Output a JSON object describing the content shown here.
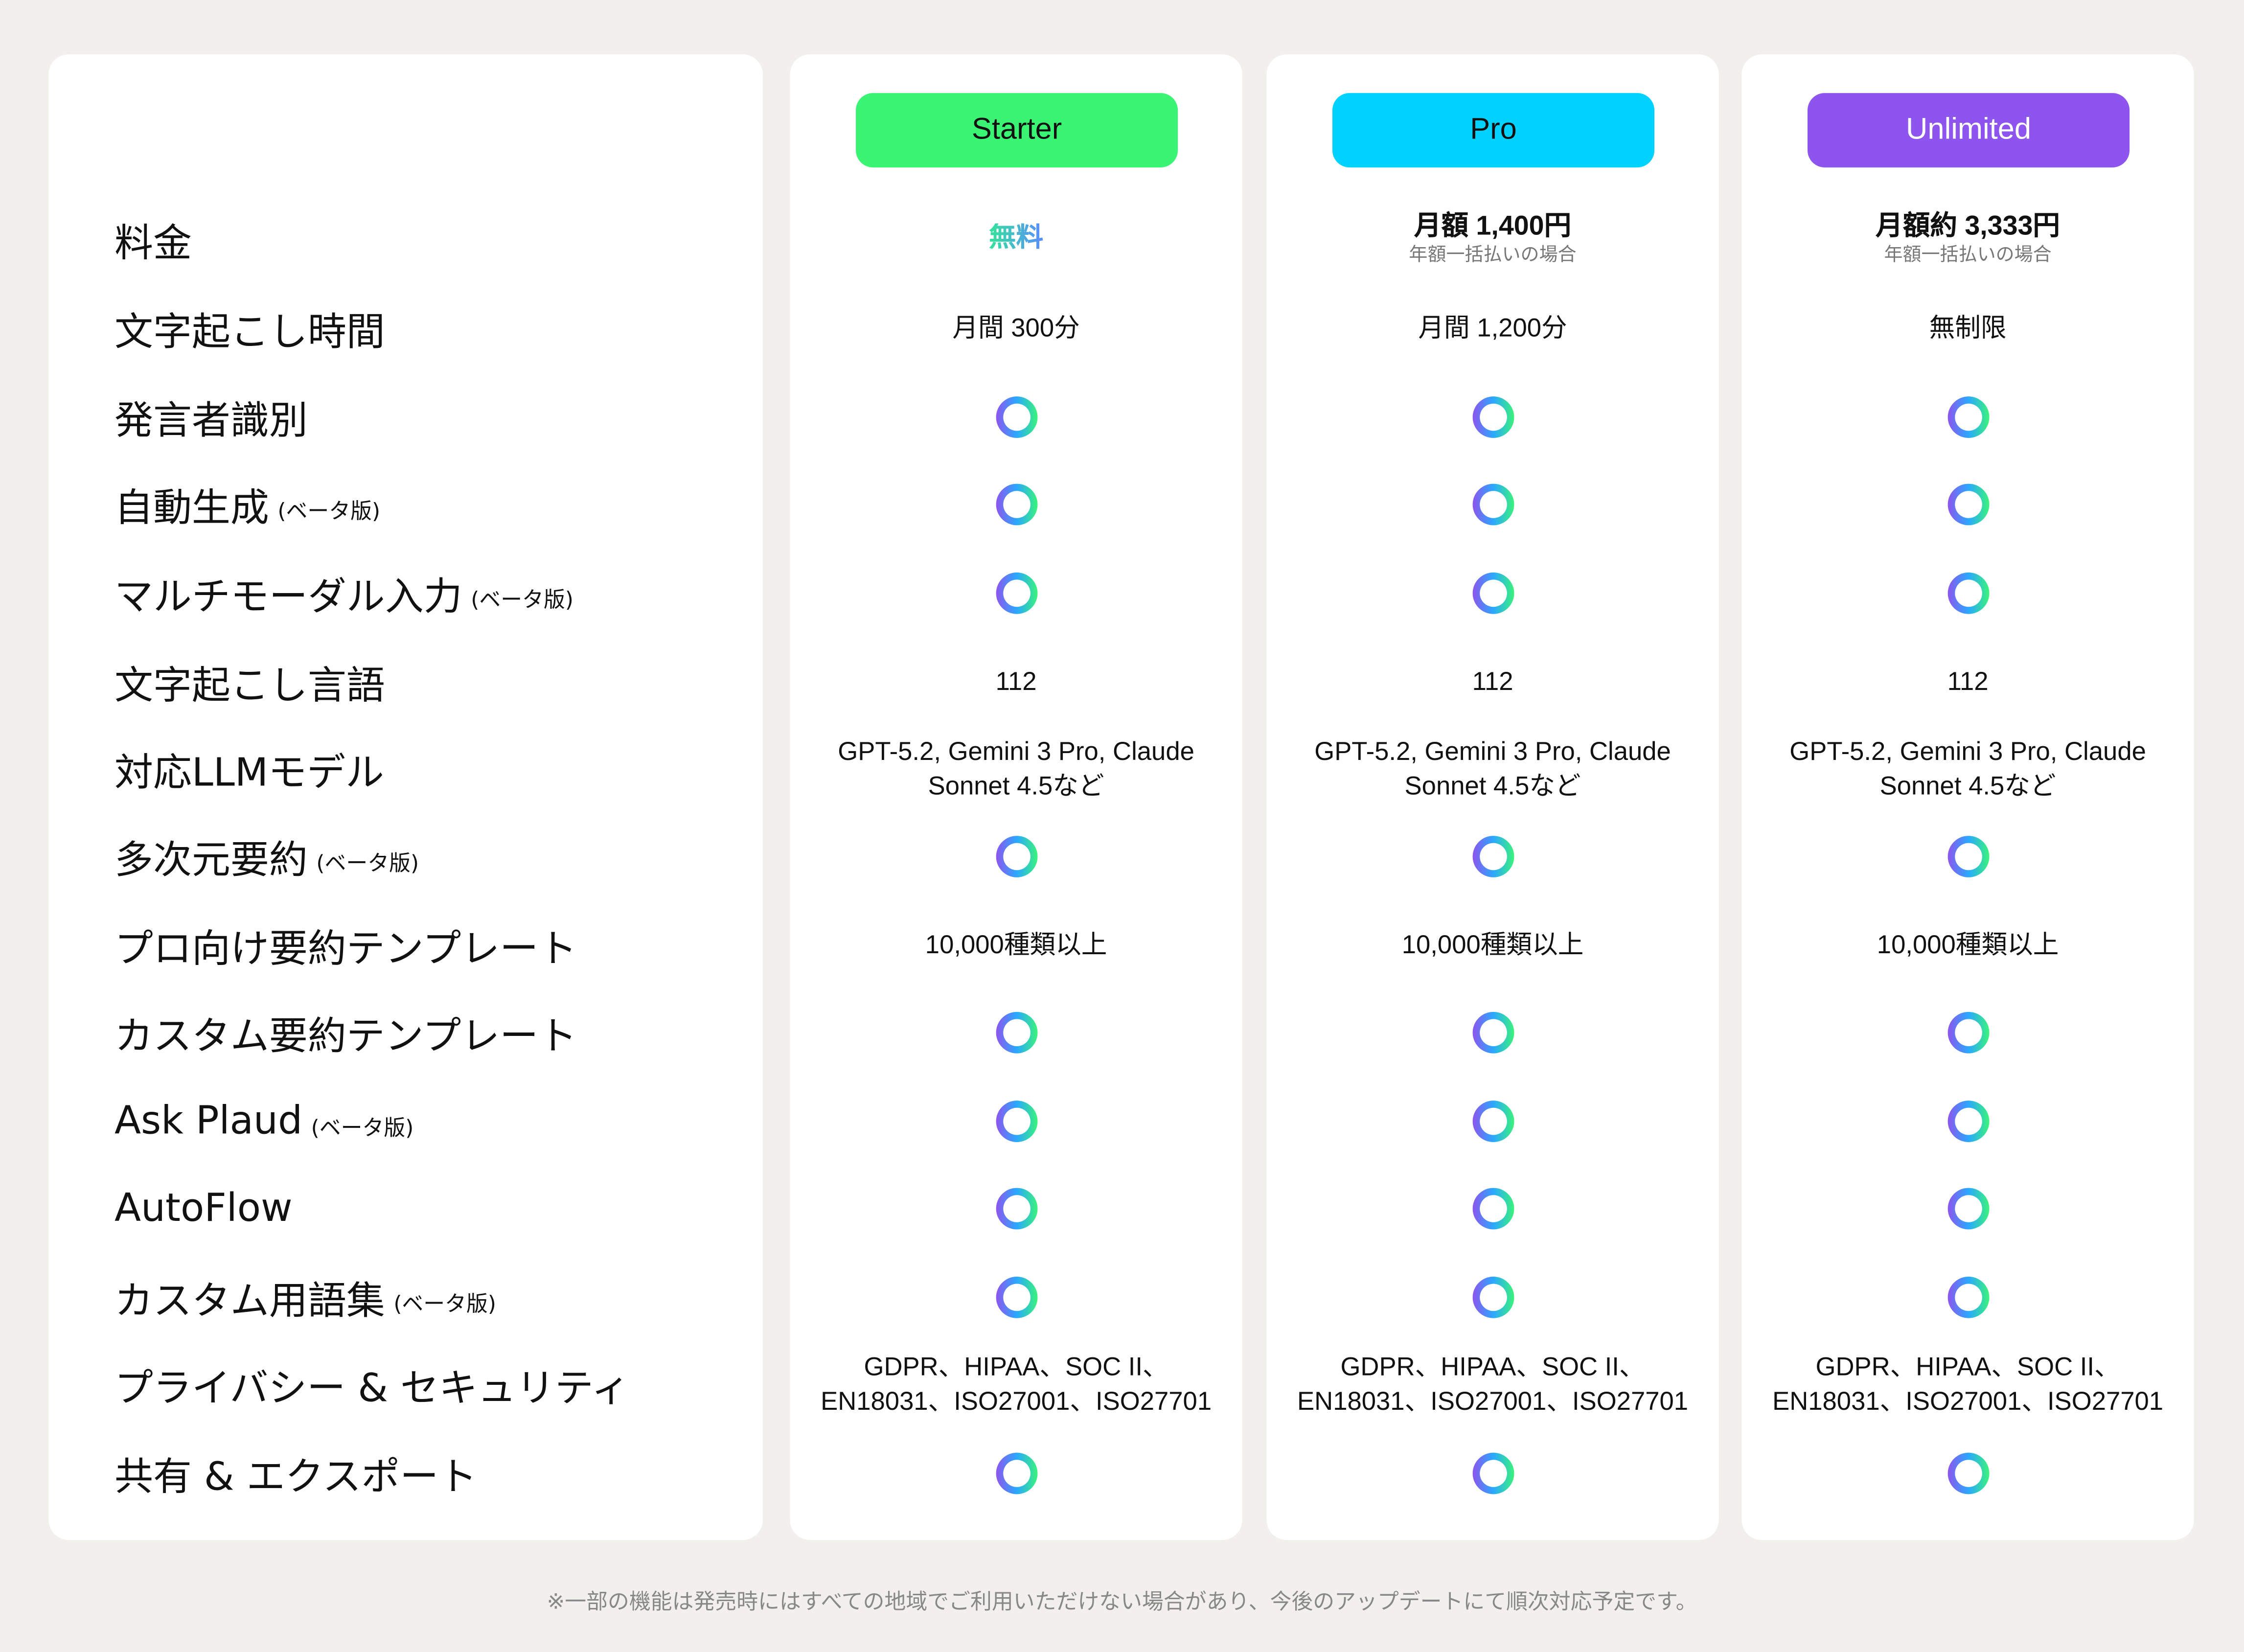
{
  "plans": [
    {
      "name": "Starter",
      "color": "#3af574"
    },
    {
      "name": "Pro",
      "color": "#00d2ff"
    },
    {
      "name": "Unlimited",
      "color": "#8e55ee",
      "text_color": "#ffffff"
    }
  ],
  "beta_label": "(ベータ版)",
  "check_icon_gradient": [
    "#8e55ee",
    "#2aa8ff",
    "#3af47a"
  ],
  "rows": [
    {
      "label": "料金",
      "cells": [
        {
          "type": "free",
          "text": "無料"
        },
        {
          "type": "price",
          "text": "月額 1,400円",
          "note": "年額一括払いの場合"
        },
        {
          "type": "price",
          "text": "月額約 3,333円",
          "note": "年額一括払いの場合"
        }
      ]
    },
    {
      "label": "文字起こし時間",
      "cells": [
        {
          "type": "text",
          "text": "月間 300分"
        },
        {
          "type": "text",
          "text": "月間 1,200分"
        },
        {
          "type": "text",
          "text": "無制限"
        }
      ]
    },
    {
      "label": "発言者識別",
      "cells": [
        {
          "type": "check"
        },
        {
          "type": "check"
        },
        {
          "type": "check"
        }
      ]
    },
    {
      "label": "自動生成",
      "beta": true,
      "cells": [
        {
          "type": "check"
        },
        {
          "type": "check"
        },
        {
          "type": "check"
        }
      ]
    },
    {
      "label": "マルチモーダル入力",
      "beta": true,
      "cells": [
        {
          "type": "check"
        },
        {
          "type": "check"
        },
        {
          "type": "check"
        }
      ]
    },
    {
      "label": "文字起こし言語",
      "cells": [
        {
          "type": "text",
          "text": "112"
        },
        {
          "type": "text",
          "text": "112"
        },
        {
          "type": "text",
          "text": "112"
        }
      ]
    },
    {
      "label": "対応LLMモデル",
      "cells": [
        {
          "type": "text",
          "text": "GPT-5.2, Gemini 3 Pro, Claude Sonnet 4.5など"
        },
        {
          "type": "text",
          "text": "GPT-5.2, Gemini 3 Pro, Claude Sonnet 4.5など"
        },
        {
          "type": "text",
          "text": "GPT-5.2, Gemini 3 Pro, Claude Sonnet 4.5など"
        }
      ]
    },
    {
      "label": "多次元要約",
      "beta": true,
      "cells": [
        {
          "type": "check"
        },
        {
          "type": "check"
        },
        {
          "type": "check"
        }
      ]
    },
    {
      "label": "プロ向け要約テンプレート",
      "cells": [
        {
          "type": "text",
          "text": "10,000種類以上"
        },
        {
          "type": "text",
          "text": "10,000種類以上"
        },
        {
          "type": "text",
          "text": "10,000種類以上"
        }
      ]
    },
    {
      "label": "カスタム要約テンプレート",
      "cells": [
        {
          "type": "check"
        },
        {
          "type": "check"
        },
        {
          "type": "check"
        }
      ]
    },
    {
      "label": "Ask Plaud",
      "beta": true,
      "cells": [
        {
          "type": "check"
        },
        {
          "type": "check"
        },
        {
          "type": "check"
        }
      ]
    },
    {
      "label": "AutoFlow",
      "cells": [
        {
          "type": "check"
        },
        {
          "type": "check"
        },
        {
          "type": "check"
        }
      ]
    },
    {
      "label": "カスタム用語集",
      "beta": true,
      "cells": [
        {
          "type": "check"
        },
        {
          "type": "check"
        },
        {
          "type": "check"
        }
      ]
    },
    {
      "label": "プライバシー & セキュリティ",
      "cells": [
        {
          "type": "text",
          "text": "GDPR、HIPAA、SOC II、EN18031、ISO27001、ISO27701"
        },
        {
          "type": "text",
          "text": "GDPR、HIPAA、SOC II、EN18031、ISO27001、ISO27701"
        },
        {
          "type": "text",
          "text": "GDPR、HIPAA、SOC II、EN18031、ISO27001、ISO27701"
        }
      ]
    },
    {
      "label": "共有 & エクスポート",
      "cells": [
        {
          "type": "check"
        },
        {
          "type": "check"
        },
        {
          "type": "check"
        }
      ]
    }
  ],
  "footnote": "※一部の機能は発売時にはすべての地域でご利用いただけない場合があり、今後のアップデートにて順次対応予定です。"
}
